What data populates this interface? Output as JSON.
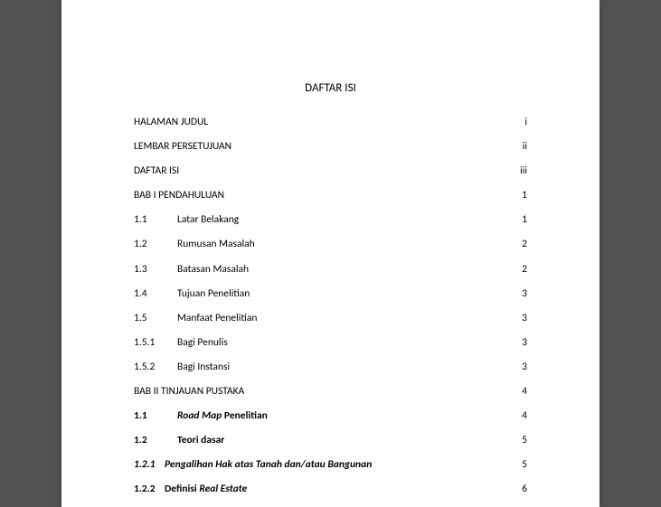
{
  "title": "DAFTAR ISI",
  "entries": [
    {
      "num": "",
      "label": "HALAMAN JUDUL",
      "page": "i",
      "bold": false,
      "italic": false,
      "indent": false
    },
    {
      "num": "",
      "label": "LEMBAR PERSETUJUAN",
      "page": "ii",
      "bold": false,
      "italic": false,
      "indent": false
    },
    {
      "num": "",
      "label": "DAFTAR ISI",
      "page": "iii",
      "bold": false,
      "italic": false,
      "indent": false
    },
    {
      "num": "",
      "label": "BAB I  PENDAHULUAN",
      "page": "1",
      "bold": false,
      "italic": false,
      "indent": false
    },
    {
      "num": "1.1",
      "label": "Latar Belakang",
      "page": "1",
      "bold": false,
      "italic": false,
      "indent": false
    },
    {
      "num": "1.2",
      "label": "Rumusan Masalah",
      "page": "2",
      "bold": false,
      "italic": false,
      "indent": false
    },
    {
      "num": "1.3",
      "label": "Batasan Masalah",
      "page": "2",
      "bold": false,
      "italic": false,
      "indent": false
    },
    {
      "num": "1.4",
      "label": "Tujuan Penelitian",
      "page": "3",
      "bold": false,
      "italic": false,
      "indent": false
    },
    {
      "num": "1.5",
      "label": "Manfaat Penelitian",
      "page": "3",
      "bold": false,
      "italic": false,
      "indent": false
    },
    {
      "num": "1.5.1",
      "label": "Bagi Penulis",
      "page": "3",
      "bold": false,
      "italic": false,
      "indent": false
    },
    {
      "num": "1.5.2",
      "label": "Bagi Instansi",
      "page": "3",
      "bold": false,
      "italic": false,
      "indent": false
    },
    {
      "num": "",
      "label": "BAB II TINJAUAN PUSTAKA",
      "page": "4",
      "bold": false,
      "italic": false,
      "indent": false
    },
    {
      "num": "1.1",
      "label_parts": [
        {
          "t": "Road Map",
          "i": true
        },
        {
          "t": " Penelitian",
          "i": false
        }
      ],
      "page": "4",
      "bold": true,
      "indent": false
    },
    {
      "num": "1.2",
      "label": "Teori dasar",
      "page": "5",
      "bold": true,
      "italic": false,
      "indent": false
    },
    {
      "num": "1.2.1",
      "label": "Pengalihan Hak atas Tanah dan/atau Bangunan",
      "page": "5",
      "bold": true,
      "italic": true,
      "indent": true,
      "num_italic": true
    },
    {
      "num": "1.2.2",
      "label_parts": [
        {
          "t": "Definisi ",
          "i": false
        },
        {
          "t": "Real Estate",
          "i": true
        }
      ],
      "page": "6",
      "bold": true,
      "indent": true,
      "num_italic": false
    }
  ]
}
